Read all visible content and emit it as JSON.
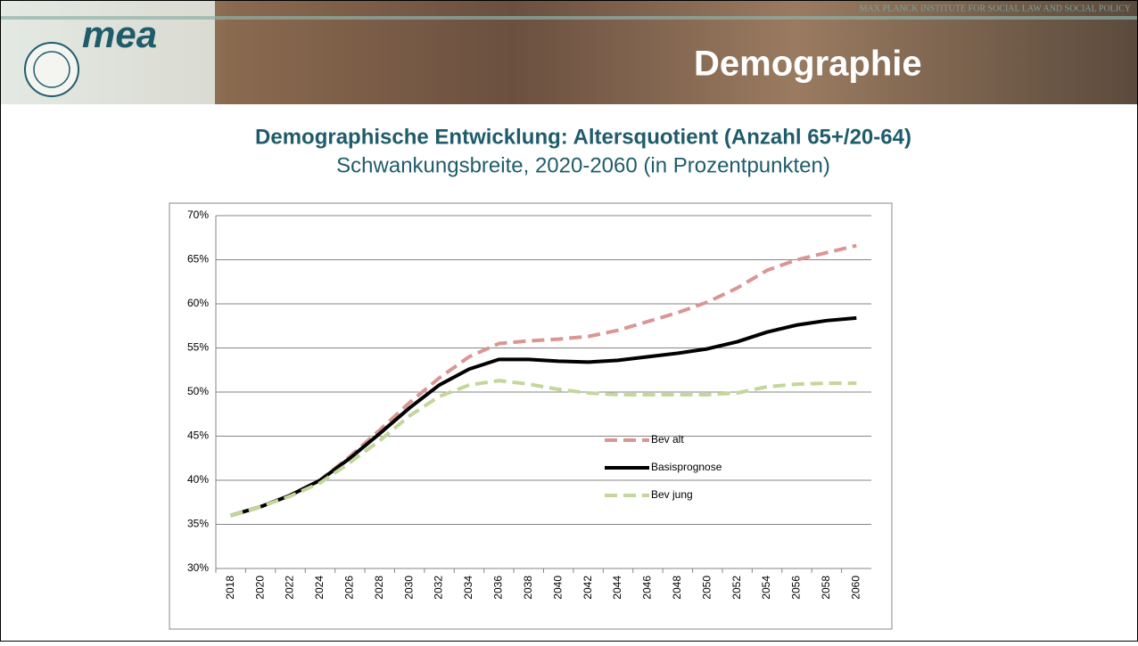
{
  "header": {
    "institute": "MAX PLANCK INSTITUTE FOR SOCIAL LAW AND SOCIAL POLICY",
    "logo": "mea",
    "section": "Demographie"
  },
  "chart_data": {
    "type": "line",
    "title": "Demographische Entwicklung: Altersquotient (Anzahl 65+/20-64)",
    "subtitle": "Schwankungsbreite, 2020-2060 (in Prozentpunkten)",
    "categories": [
      "2018",
      "2020",
      "2022",
      "2024",
      "2026",
      "2028",
      "2030",
      "2032",
      "2034",
      "2036",
      "2038",
      "2040",
      "2042",
      "2044",
      "2046",
      "2048",
      "2050",
      "2052",
      "2054",
      "2056",
      "2058",
      "2060"
    ],
    "series": [
      {
        "name": "Bev alt",
        "color": "#d99694",
        "dashed": true,
        "values": [
          36,
          37,
          38.3,
          40,
          42.7,
          45.7,
          48.8,
          51.6,
          54,
          55.5,
          55.8,
          56,
          56.3,
          57,
          58,
          59,
          60.2,
          61.8,
          63.8,
          65,
          65.8,
          66.6
        ]
      },
      {
        "name": "Basisprognose",
        "color": "#000000",
        "dashed": false,
        "values": [
          36,
          37,
          38.3,
          40,
          42.5,
          45.3,
          48.2,
          50.8,
          52.6,
          53.7,
          53.7,
          53.5,
          53.4,
          53.6,
          54,
          54.4,
          54.9,
          55.7,
          56.8,
          57.6,
          58.1,
          58.4
        ]
      },
      {
        "name": "Bev jung",
        "color": "#c3d69b",
        "dashed": true,
        "values": [
          36,
          37,
          38.2,
          39.7,
          42,
          44.5,
          47.3,
          49.5,
          50.8,
          51.3,
          50.9,
          50.3,
          49.9,
          49.7,
          49.7,
          49.7,
          49.7,
          49.9,
          50.6,
          50.9,
          51,
          51
        ]
      }
    ],
    "ylim": [
      30,
      70
    ],
    "yticks": [
      {
        "value": 30,
        "label": "30%"
      },
      {
        "value": 35,
        "label": "35%"
      },
      {
        "value": 40,
        "label": "40%"
      },
      {
        "value": 45,
        "label": "45%"
      },
      {
        "value": 50,
        "label": "50%"
      },
      {
        "value": 55,
        "label": "55%"
      },
      {
        "value": 60,
        "label": "60%"
      },
      {
        "value": 65,
        "label": "65%"
      },
      {
        "value": 70,
        "label": "70%"
      }
    ],
    "grid": true
  }
}
